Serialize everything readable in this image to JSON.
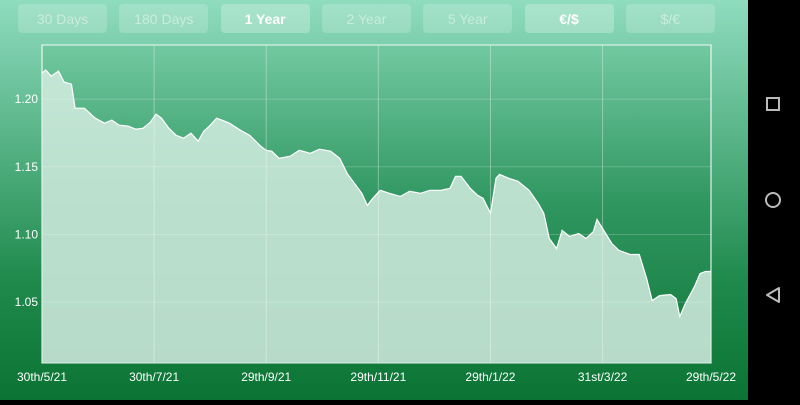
{
  "range_buttons": [
    {
      "label": "30 Days",
      "active": false
    },
    {
      "label": "180 Days",
      "active": false
    },
    {
      "label": "1 Year",
      "active": true
    },
    {
      "label": "2 Year",
      "active": false
    },
    {
      "label": "5 Year",
      "active": false
    },
    {
      "label": "€/$",
      "active": true
    },
    {
      "label": "$/€",
      "active": false
    }
  ],
  "nav_icons": [
    "square-recent-apps-icon",
    "circle-home-icon",
    "triangle-back-icon"
  ],
  "colors": {
    "fill": "#d4ece0",
    "line": "#ffffff",
    "grid": "#ffffff"
  },
  "chart_data": {
    "type": "area",
    "title": "",
    "xlabel": "",
    "ylabel": "",
    "ylim": [
      1.005,
      1.24
    ],
    "xlim": [
      "2021-05-30",
      "2022-05-29"
    ],
    "grid": true,
    "y_ticks": [
      {
        "value": 1.05,
        "label": "1.05"
      },
      {
        "value": 1.1,
        "label": "1.10"
      },
      {
        "value": 1.15,
        "label": "1.15"
      },
      {
        "value": 1.2,
        "label": "1.20"
      }
    ],
    "x_ticks": [
      {
        "date": "2021-05-30",
        "label": "30th/5/21"
      },
      {
        "date": "2021-07-30",
        "label": "30th/7/21"
      },
      {
        "date": "2021-09-29",
        "label": "29th/9/21"
      },
      {
        "date": "2021-11-29",
        "label": "29th/11/21"
      },
      {
        "date": "2022-01-29",
        "label": "29th/1/22"
      },
      {
        "date": "2022-03-31",
        "label": "31st/3/22"
      },
      {
        "date": "2022-05-29",
        "label": "29th/5/22"
      }
    ],
    "points": [
      [
        "2021-05-30",
        1.2193
      ],
      [
        "2021-06-01",
        1.2215
      ],
      [
        "2021-06-04",
        1.217
      ],
      [
        "2021-06-08",
        1.2207
      ],
      [
        "2021-06-11",
        1.2126
      ],
      [
        "2021-06-15",
        1.2111
      ],
      [
        "2021-06-17",
        1.1933
      ],
      [
        "2021-06-22",
        1.1933
      ],
      [
        "2021-06-25",
        1.1896
      ],
      [
        "2021-06-28",
        1.1859
      ],
      [
        "2021-07-03",
        1.1822
      ],
      [
        "2021-07-07",
        1.1844
      ],
      [
        "2021-07-11",
        1.1807
      ],
      [
        "2021-07-16",
        1.18
      ],
      [
        "2021-07-20",
        1.1778
      ],
      [
        "2021-07-24",
        1.1785
      ],
      [
        "2021-07-28",
        1.183
      ],
      [
        "2021-07-31",
        1.1889
      ],
      [
        "2021-08-03",
        1.1859
      ],
      [
        "2021-08-07",
        1.1785
      ],
      [
        "2021-08-11",
        1.1733
      ],
      [
        "2021-08-15",
        1.1711
      ],
      [
        "2021-08-19",
        1.1748
      ],
      [
        "2021-08-23",
        1.1689
      ],
      [
        "2021-08-26",
        1.1763
      ],
      [
        "2021-08-29",
        1.18
      ],
      [
        "2021-09-02",
        1.1859
      ],
      [
        "2021-09-05",
        1.1844
      ],
      [
        "2021-09-09",
        1.1822
      ],
      [
        "2021-09-15",
        1.177
      ],
      [
        "2021-09-20",
        1.1733
      ],
      [
        "2021-09-26",
        1.1652
      ],
      [
        "2021-09-29",
        1.1622
      ],
      [
        "2021-10-02",
        1.1615
      ],
      [
        "2021-10-06",
        1.1563
      ],
      [
        "2021-10-12",
        1.1578
      ],
      [
        "2021-10-17",
        1.1622
      ],
      [
        "2021-10-23",
        1.16
      ],
      [
        "2021-10-28",
        1.163
      ],
      [
        "2021-11-03",
        1.1615
      ],
      [
        "2021-11-08",
        1.1563
      ],
      [
        "2021-11-12",
        1.1452
      ],
      [
        "2021-11-16",
        1.1378
      ],
      [
        "2021-11-20",
        1.1304
      ],
      [
        "2021-11-23",
        1.1215
      ],
      [
        "2021-11-26",
        1.1267
      ],
      [
        "2021-11-30",
        1.1326
      ],
      [
        "2021-12-05",
        1.1304
      ],
      [
        "2021-12-11",
        1.1281
      ],
      [
        "2021-12-16",
        1.1319
      ],
      [
        "2021-12-22",
        1.1304
      ],
      [
        "2021-12-27",
        1.1326
      ],
      [
        "2022-01-02",
        1.1326
      ],
      [
        "2022-01-07",
        1.1341
      ],
      [
        "2022-01-10",
        1.143
      ],
      [
        "2022-01-13",
        1.143
      ],
      [
        "2022-01-18",
        1.1341
      ],
      [
        "2022-01-22",
        1.1289
      ],
      [
        "2022-01-25",
        1.1267
      ],
      [
        "2022-01-29",
        1.1156
      ],
      [
        "2022-02-01",
        1.1415
      ],
      [
        "2022-02-03",
        1.1444
      ],
      [
        "2022-02-08",
        1.1415
      ],
      [
        "2022-02-13",
        1.1393
      ],
      [
        "2022-02-19",
        1.1326
      ],
      [
        "2022-02-24",
        1.123
      ],
      [
        "2022-02-27",
        1.1156
      ],
      [
        "2022-03-02",
        1.097
      ],
      [
        "2022-03-06",
        1.0896
      ],
      [
        "2022-03-09",
        1.103
      ],
      [
        "2022-03-13",
        1.0985
      ],
      [
        "2022-03-18",
        1.1007
      ],
      [
        "2022-03-22",
        1.097
      ],
      [
        "2022-03-26",
        1.1022
      ],
      [
        "2022-03-28",
        1.1111
      ],
      [
        "2022-04-01",
        1.1022
      ],
      [
        "2022-04-05",
        1.0933
      ],
      [
        "2022-04-09",
        1.0881
      ],
      [
        "2022-04-15",
        1.0852
      ],
      [
        "2022-04-20",
        1.0852
      ],
      [
        "2022-04-24",
        1.0674
      ],
      [
        "2022-04-27",
        1.0511
      ],
      [
        "2022-05-01",
        1.0548
      ],
      [
        "2022-05-07",
        1.0556
      ],
      [
        "2022-05-10",
        1.0526
      ],
      [
        "2022-05-12",
        1.0393
      ],
      [
        "2022-05-15",
        1.0489
      ],
      [
        "2022-05-20",
        1.0615
      ],
      [
        "2022-05-23",
        1.0711
      ],
      [
        "2022-05-26",
        1.0726
      ],
      [
        "2022-05-29",
        1.0726
      ]
    ]
  }
}
